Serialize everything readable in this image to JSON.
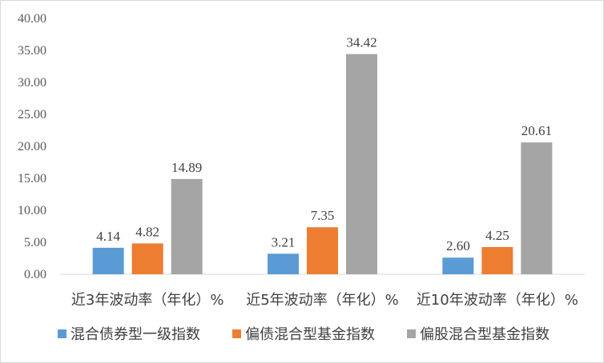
{
  "chart_data": {
    "type": "bar",
    "categories": [
      "近3年波动率（年化）%",
      "近5年波动率（年化）%",
      "近10年波动率（年化）%"
    ],
    "series": [
      {
        "name": "混合债券型一级指数",
        "color": "#5b9bd5",
        "values": [
          4.14,
          3.21,
          2.6
        ],
        "labels": [
          "4.14",
          "3.21",
          "2.60"
        ]
      },
      {
        "name": "偏债混合型基金指数",
        "color": "#ed7d31",
        "values": [
          4.82,
          7.35,
          4.25
        ],
        "labels": [
          "4.82",
          "7.35",
          "4.25"
        ]
      },
      {
        "name": "偏股混合型基金指数",
        "color": "#a5a5a5",
        "values": [
          14.89,
          34.42,
          20.61
        ],
        "labels": [
          "14.89",
          "34.42",
          "20.61"
        ]
      }
    ],
    "y_ticks": [
      "0.00",
      "5.00",
      "10.00",
      "15.00",
      "20.00",
      "25.00",
      "30.00",
      "35.00",
      "40.00"
    ],
    "ylim": [
      0,
      40
    ],
    "grid": false,
    "legend_position": "bottom"
  }
}
